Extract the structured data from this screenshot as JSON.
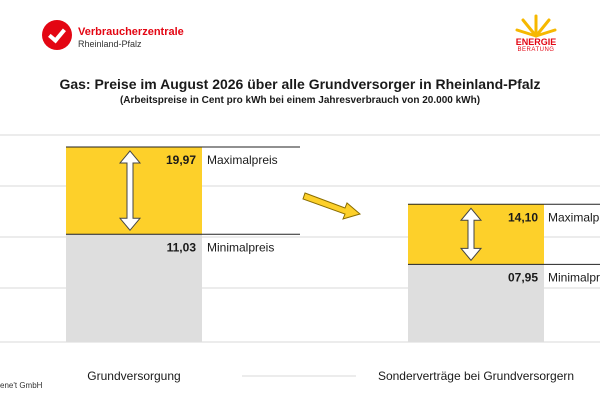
{
  "logo_left": {
    "brand": "Verbraucherzentrale",
    "region": "Rheinland-Pfalz"
  },
  "logo_right": {
    "line1": "ENERGIE",
    "line2": "BERATUNG"
  },
  "source": "ene't GmbH",
  "chart_data": {
    "type": "bar",
    "title": "Gas: Preise im August 2026 über alle Grundversorger in Rheinland-Pfalz",
    "subtitle": "(Arbeitspreise in Cent pro kWh bei einem Jahresverbrauch von 20.000 kWh)",
    "categories": [
      "Grundversorgung",
      "Sonderverträge bei Grundversorgern"
    ],
    "series": [
      {
        "name": "Minimalpreis",
        "values": [
          11.03,
          7.95
        ],
        "labels": [
          "11,03",
          "07,95"
        ]
      },
      {
        "name": "Maximalpreis",
        "values": [
          19.97,
          14.1
        ],
        "labels": [
          "19,97",
          "14,10"
        ]
      }
    ],
    "ylim": [
      0,
      21.5
    ],
    "colors": {
      "range": "#fdd02a",
      "base": "#dedede",
      "arrow": "#fdd02a"
    },
    "grid": true
  }
}
